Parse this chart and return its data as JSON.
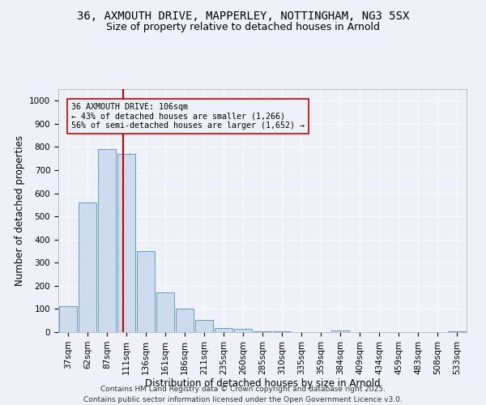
{
  "title_line1": "36, AXMOUTH DRIVE, MAPPERLEY, NOTTINGHAM, NG3 5SX",
  "title_line2": "Size of property relative to detached houses in Arnold",
  "bar_labels": [
    "37sqm",
    "62sqm",
    "87sqm",
    "111sqm",
    "136sqm",
    "161sqm",
    "186sqm",
    "211sqm",
    "235sqm",
    "260sqm",
    "285sqm",
    "310sqm",
    "335sqm",
    "359sqm",
    "384sqm",
    "409sqm",
    "434sqm",
    "459sqm",
    "483sqm",
    "508sqm",
    "533sqm"
  ],
  "bar_values": [
    112,
    560,
    790,
    770,
    350,
    170,
    100,
    53,
    18,
    13,
    5,
    5,
    0,
    0,
    8,
    0,
    0,
    0,
    0,
    0,
    3
  ],
  "bar_color": "#cddcec",
  "bar_edge_color": "#6699cc",
  "xlabel": "Distribution of detached houses by size in Arnold",
  "ylabel": "Number of detached properties",
  "ylim": [
    0,
    1050
  ],
  "yticks": [
    0,
    100,
    200,
    300,
    400,
    500,
    600,
    700,
    800,
    900,
    1000
  ],
  "vline_x": 2.82,
  "vline_color": "#cc0000",
  "annotation_text": "36 AXMOUTH DRIVE: 106sqm\n← 43% of detached houses are smaller (1,266)\n56% of semi-detached houses are larger (1,652) →",
  "annotation_box_color": "#cc0000",
  "footer_line1": "Contains HM Land Registry data © Crown copyright and database right 2025.",
  "footer_line2": "Contains public sector information licensed under the Open Government Licence v3.0.",
  "background_color": "#eef2f8",
  "grid_color": "#ffffff",
  "title_fontsize": 10,
  "subtitle_fontsize": 9,
  "axis_label_fontsize": 8.5,
  "tick_fontsize": 7.5,
  "footer_fontsize": 6.5
}
